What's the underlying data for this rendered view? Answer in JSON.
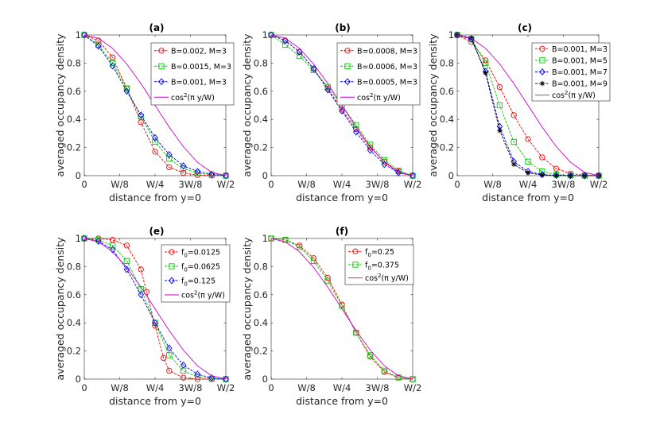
{
  "chart_data": [
    {
      "type": "line",
      "label": "(a)",
      "xlabel": "distance from y=0",
      "ylabel": "averaged occupancy density",
      "xlim": [
        0,
        0.5
      ],
      "ylim": [
        0,
        1
      ],
      "x_ticks": [
        0,
        0.125,
        0.25,
        0.375,
        0.5
      ],
      "x_tick_labels": [
        "0",
        "W/8",
        "W/4",
        "3W/8",
        "W/2"
      ],
      "y_ticks": [
        0,
        0.2,
        0.4,
        0.6,
        0.8,
        1
      ],
      "y_tick_labels": [
        "0",
        "0.2",
        "0.4",
        "0.6",
        "0.8",
        "1"
      ],
      "legend": [
        {
          "text": "B=0.002, M=3",
          "color": "#ff0000",
          "marker": "circle"
        },
        {
          "text": "B=0.0015, M=3",
          "color": "#00cc00",
          "marker": "square"
        },
        {
          "text": "B=0.001, M=3",
          "color": "#0000ff",
          "marker": "diamond"
        },
        {
          "text": "cos",
          "sup": "2",
          "suffix": "(π y/W)",
          "color": "#cc00cc",
          "marker": "line"
        }
      ],
      "series": [
        {
          "name": "B=0.002, M=3",
          "color": "#ff0000",
          "marker": "circle",
          "x": [
            0,
            0.05,
            0.1,
            0.15,
            0.2,
            0.25,
            0.3,
            0.35,
            0.4,
            0.45,
            0.5
          ],
          "y": [
            1,
            0.96,
            0.84,
            0.62,
            0.38,
            0.17,
            0.06,
            0.02,
            0.005,
            0.001,
            0
          ]
        },
        {
          "name": "B=0.0015, M=3",
          "color": "#00cc00",
          "marker": "square",
          "x": [
            0,
            0.05,
            0.1,
            0.15,
            0.2,
            0.25,
            0.3,
            0.35,
            0.4,
            0.45,
            0.5
          ],
          "y": [
            1,
            0.93,
            0.8,
            0.62,
            0.42,
            0.24,
            0.12,
            0.05,
            0.02,
            0.005,
            0
          ]
        },
        {
          "name": "B=0.001, M=3",
          "color": "#0000ff",
          "marker": "diamond",
          "x": [
            0,
            0.05,
            0.1,
            0.15,
            0.2,
            0.25,
            0.3,
            0.35,
            0.4,
            0.45,
            0.5
          ],
          "y": [
            1,
            0.92,
            0.78,
            0.6,
            0.43,
            0.27,
            0.15,
            0.07,
            0.03,
            0.01,
            0
          ]
        },
        {
          "name": "cos²(π y/W)",
          "color": "#cc00cc",
          "marker": "line",
          "x": [
            0,
            0.05,
            0.1,
            0.15,
            0.2,
            0.25,
            0.3,
            0.35,
            0.4,
            0.45,
            0.5
          ],
          "y": [
            1,
            0.976,
            0.905,
            0.794,
            0.655,
            0.5,
            0.345,
            0.206,
            0.095,
            0.024,
            0
          ]
        }
      ]
    },
    {
      "type": "line",
      "label": "(b)",
      "xlabel": "distance from y=0",
      "ylabel": "averaged occupancy density",
      "xlim": [
        0,
        0.5
      ],
      "ylim": [
        0,
        1
      ],
      "x_ticks": [
        0,
        0.125,
        0.25,
        0.375,
        0.5
      ],
      "x_tick_labels": [
        "0",
        "W/8",
        "W/4",
        "3W/8",
        "W/2"
      ],
      "y_ticks": [
        0,
        0.2,
        0.4,
        0.6,
        0.8,
        1
      ],
      "y_tick_labels": [
        "0",
        "0.2",
        "0.4",
        "0.6",
        "0.8",
        "1"
      ],
      "legend": [
        {
          "text": "B=0.0008, M=3",
          "color": "#ff0000",
          "marker": "circle"
        },
        {
          "text": "B=0.0006, M=3",
          "color": "#00cc00",
          "marker": "square"
        },
        {
          "text": "B=0.0005, M=3",
          "color": "#0000ff",
          "marker": "diamond"
        },
        {
          "text": "cos",
          "sup": "2",
          "suffix": "(π y/W)",
          "color": "#cc00cc",
          "marker": "line"
        }
      ],
      "series": [
        {
          "name": "B=0.0008, M=3",
          "color": "#ff0000",
          "marker": "circle",
          "x": [
            0,
            0.05,
            0.1,
            0.15,
            0.2,
            0.25,
            0.3,
            0.35,
            0.4,
            0.45,
            0.5
          ],
          "y": [
            1,
            0.96,
            0.88,
            0.76,
            0.62,
            0.47,
            0.33,
            0.2,
            0.1,
            0.03,
            0
          ]
        },
        {
          "name": "B=0.0006, M=3",
          "color": "#00cc00",
          "marker": "square",
          "x": [
            0,
            0.05,
            0.1,
            0.15,
            0.2,
            0.25,
            0.3,
            0.35,
            0.4,
            0.45,
            0.5
          ],
          "y": [
            1,
            0.93,
            0.85,
            0.75,
            0.63,
            0.5,
            0.36,
            0.22,
            0.11,
            0.035,
            0
          ]
        },
        {
          "name": "B=0.0005, M=3",
          "color": "#0000ff",
          "marker": "diamond",
          "x": [
            0,
            0.05,
            0.1,
            0.15,
            0.2,
            0.25,
            0.3,
            0.35,
            0.4,
            0.45,
            0.5
          ],
          "y": [
            1,
            0.96,
            0.88,
            0.76,
            0.61,
            0.46,
            0.31,
            0.18,
            0.08,
            0.02,
            0
          ]
        },
        {
          "name": "cos²(π y/W)",
          "color": "#cc00cc",
          "marker": "line",
          "x": [
            0,
            0.05,
            0.1,
            0.15,
            0.2,
            0.25,
            0.3,
            0.35,
            0.4,
            0.45,
            0.5
          ],
          "y": [
            1,
            0.976,
            0.905,
            0.794,
            0.655,
            0.5,
            0.345,
            0.206,
            0.095,
            0.024,
            0
          ]
        }
      ]
    },
    {
      "type": "line",
      "label": "(c)",
      "xlabel": "distance from y=0",
      "ylabel": "averaged occupancy density",
      "xlim": [
        0,
        0.5
      ],
      "ylim": [
        0,
        1
      ],
      "x_ticks": [
        0,
        0.125,
        0.25,
        0.375,
        0.5
      ],
      "x_tick_labels": [
        "0",
        "W/8",
        "W/4",
        "3W/8",
        "W/2"
      ],
      "y_ticks": [
        0,
        0.2,
        0.4,
        0.6,
        0.8,
        1
      ],
      "y_tick_labels": [
        "0",
        "0.2",
        "0.4",
        "0.6",
        "0.8",
        "1"
      ],
      "legend": [
        {
          "text": "B=0.001, M=3",
          "color": "#ff0000",
          "marker": "circle"
        },
        {
          "text": "B=0.001, M=5",
          "color": "#00cc00",
          "marker": "square"
        },
        {
          "text": "B=0.001, M=7",
          "color": "#0000ff",
          "marker": "diamond"
        },
        {
          "text": "B=0.001, M=9",
          "color": "#000000",
          "marker": "star"
        },
        {
          "text": "cos",
          "sup": "2",
          "suffix": "(π y/W)",
          "color": "#cc00cc",
          "marker": "line"
        }
      ],
      "series": [
        {
          "name": "B=0.001, M=3",
          "color": "#ff0000",
          "marker": "circle",
          "x": [
            0,
            0.05,
            0.1,
            0.15,
            0.2,
            0.25,
            0.3,
            0.35,
            0.4,
            0.45,
            0.5
          ],
          "y": [
            1,
            0.95,
            0.82,
            0.63,
            0.43,
            0.26,
            0.13,
            0.05,
            0.015,
            0.003,
            0
          ]
        },
        {
          "name": "B=0.001, M=5",
          "color": "#00cc00",
          "marker": "square",
          "x": [
            0,
            0.05,
            0.1,
            0.15,
            0.2,
            0.25,
            0.3,
            0.35,
            0.4,
            0.45,
            0.5
          ],
          "y": [
            1,
            0.97,
            0.8,
            0.5,
            0.24,
            0.1,
            0.03,
            0.008,
            0.002,
            0,
            0
          ]
        },
        {
          "name": "B=0.001, M=7",
          "color": "#0000ff",
          "marker": "diamond",
          "x": [
            0,
            0.05,
            0.1,
            0.15,
            0.2,
            0.25,
            0.3,
            0.35,
            0.4,
            0.45,
            0.5
          ],
          "y": [
            1,
            0.97,
            0.74,
            0.35,
            0.1,
            0.03,
            0.008,
            0.002,
            0,
            0,
            0
          ]
        },
        {
          "name": "B=0.001, M=9",
          "color": "#000000",
          "marker": "star",
          "x": [
            0,
            0.05,
            0.1,
            0.15,
            0.2,
            0.25,
            0.3,
            0.35,
            0.4,
            0.45,
            0.5
          ],
          "y": [
            1,
            0.98,
            0.73,
            0.32,
            0.08,
            0.02,
            0.005,
            0.001,
            0,
            0,
            0
          ]
        },
        {
          "name": "cos²(π y/W)",
          "color": "#cc00cc",
          "marker": "line",
          "x": [
            0,
            0.05,
            0.1,
            0.15,
            0.2,
            0.25,
            0.3,
            0.35,
            0.4,
            0.45,
            0.5
          ],
          "y": [
            1,
            0.976,
            0.905,
            0.794,
            0.655,
            0.5,
            0.345,
            0.206,
            0.095,
            0.024,
            0
          ]
        }
      ]
    },
    {
      "type": "line",
      "label": "(e)",
      "xlabel": "distance from y=0",
      "ylabel": "averaged occupancy density",
      "xlim": [
        0,
        0.5
      ],
      "ylim": [
        0,
        1
      ],
      "x_ticks": [
        0,
        0.125,
        0.25,
        0.375,
        0.5
      ],
      "x_tick_labels": [
        "0",
        "W/8",
        "W/4",
        "3W/8",
        "W/2"
      ],
      "y_ticks": [
        0,
        0.2,
        0.4,
        0.6,
        0.8,
        1
      ],
      "y_tick_labels": [
        "0",
        "0.2",
        "0.4",
        "0.6",
        "0.8",
        "1"
      ],
      "legend": [
        {
          "text": "f",
          "sub": "0",
          "suffix": "=0.0125",
          "color": "#ff0000",
          "marker": "circle"
        },
        {
          "text": "f",
          "sub": "0",
          "suffix": "=0.0625",
          "color": "#00cc00",
          "marker": "square"
        },
        {
          "text": "f",
          "sub": "0",
          "suffix": "=0.125",
          "color": "#0000ff",
          "marker": "diamond"
        },
        {
          "text": "cos",
          "sup": "2",
          "suffix": "(π y/W)",
          "color": "#cc00cc",
          "marker": "line"
        }
      ],
      "series": [
        {
          "name": "f0=0.0125",
          "color": "#ff0000",
          "marker": "circle",
          "x": [
            0,
            0.05,
            0.1,
            0.15,
            0.2,
            0.22,
            0.25,
            0.28,
            0.3,
            0.35,
            0.4,
            0.45,
            0.5
          ],
          "y": [
            1,
            1,
            0.99,
            0.95,
            0.78,
            0.62,
            0.38,
            0.15,
            0.06,
            0.01,
            0,
            0,
            0
          ]
        },
        {
          "name": "f0=0.0625",
          "color": "#00cc00",
          "marker": "square",
          "x": [
            0,
            0.05,
            0.1,
            0.15,
            0.2,
            0.25,
            0.3,
            0.35,
            0.4,
            0.45,
            0.5
          ],
          "y": [
            1,
            0.99,
            0.95,
            0.84,
            0.64,
            0.4,
            0.17,
            0.06,
            0.015,
            0.003,
            0
          ]
        },
        {
          "name": "f0=0.125",
          "color": "#0000ff",
          "marker": "diamond",
          "x": [
            0,
            0.05,
            0.1,
            0.15,
            0.2,
            0.25,
            0.3,
            0.35,
            0.4,
            0.45,
            0.5
          ],
          "y": [
            1,
            0.98,
            0.92,
            0.78,
            0.6,
            0.4,
            0.22,
            0.1,
            0.035,
            0.008,
            0
          ]
        },
        {
          "name": "cos²(π y/W)",
          "color": "#cc00cc",
          "marker": "line",
          "x": [
            0,
            0.05,
            0.1,
            0.15,
            0.2,
            0.25,
            0.3,
            0.35,
            0.4,
            0.45,
            0.5
          ],
          "y": [
            1,
            0.976,
            0.905,
            0.794,
            0.655,
            0.5,
            0.345,
            0.206,
            0.095,
            0.024,
            0
          ]
        }
      ]
    },
    {
      "type": "line",
      "label": "(f)",
      "xlabel": "distance from y=0",
      "ylabel": "averaged occupancy density",
      "xlim": [
        0,
        0.5
      ],
      "ylim": [
        0,
        1
      ],
      "x_ticks": [
        0,
        0.125,
        0.25,
        0.375,
        0.5
      ],
      "x_tick_labels": [
        "0",
        "W/8",
        "W/4",
        "3W/8",
        "W/2"
      ],
      "y_ticks": [
        0,
        0.2,
        0.4,
        0.6,
        0.8,
        1
      ],
      "y_tick_labels": [
        "0",
        "0.2",
        "0.4",
        "0.6",
        "0.8",
        "1"
      ],
      "legend": [
        {
          "text": "f",
          "sub": "0",
          "suffix": "=0.25",
          "color": "#ff0000",
          "marker": "circle"
        },
        {
          "text": "f",
          "sub": "0",
          "suffix": "=0.375",
          "color": "#00cc00",
          "marker": "square"
        },
        {
          "text": "cos",
          "sup": "2",
          "suffix": "(π y/W)",
          "color": "#cc00cc",
          "marker": "line"
        }
      ],
      "series": [
        {
          "name": "f0=0.25",
          "color": "#ff0000",
          "marker": "circle",
          "x": [
            0,
            0.05,
            0.1,
            0.15,
            0.2,
            0.25,
            0.3,
            0.35,
            0.4,
            0.45,
            0.5
          ],
          "y": [
            1,
            0.99,
            0.95,
            0.86,
            0.72,
            0.53,
            0.33,
            0.16,
            0.05,
            0.01,
            0
          ]
        },
        {
          "name": "f0=0.375",
          "color": "#00cc00",
          "marker": "square",
          "x": [
            0,
            0.05,
            0.1,
            0.15,
            0.2,
            0.25,
            0.3,
            0.35,
            0.4,
            0.45,
            0.5
          ],
          "y": [
            1,
            0.99,
            0.94,
            0.84,
            0.7,
            0.52,
            0.33,
            0.17,
            0.06,
            0.012,
            0
          ]
        },
        {
          "name": "cos²(π y/W)",
          "color": "#cc00cc",
          "marker": "line",
          "x": [
            0,
            0.05,
            0.1,
            0.15,
            0.2,
            0.25,
            0.3,
            0.35,
            0.4,
            0.45,
            0.5
          ],
          "y": [
            1,
            0.976,
            0.905,
            0.794,
            0.655,
            0.5,
            0.345,
            0.206,
            0.095,
            0.024,
            0
          ]
        }
      ]
    }
  ]
}
